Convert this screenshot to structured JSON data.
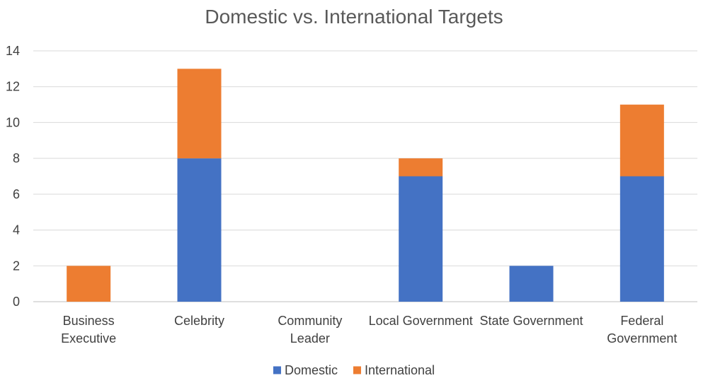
{
  "chart_data": {
    "type": "bar",
    "stacked": true,
    "title": "Domestic vs. International Targets",
    "xlabel": "",
    "ylabel": "",
    "categories": [
      [
        "Business",
        "Executive"
      ],
      [
        "Celebrity"
      ],
      [
        "Community",
        "Leader"
      ],
      [
        "Local Government"
      ],
      [
        "State Government"
      ],
      [
        "Federal",
        "Government"
      ]
    ],
    "series": [
      {
        "name": "Domestic",
        "color": "#4472C4",
        "values": [
          0,
          8,
          0,
          7,
          2,
          7
        ]
      },
      {
        "name": "International",
        "color": "#ED7D31",
        "values": [
          2,
          5,
          0,
          1,
          0,
          4
        ]
      }
    ],
    "ylim": [
      0,
      14
    ],
    "yticks": [
      0,
      2,
      4,
      6,
      8,
      10,
      12,
      14
    ],
    "grid": true,
    "legend_position": "bottom"
  }
}
